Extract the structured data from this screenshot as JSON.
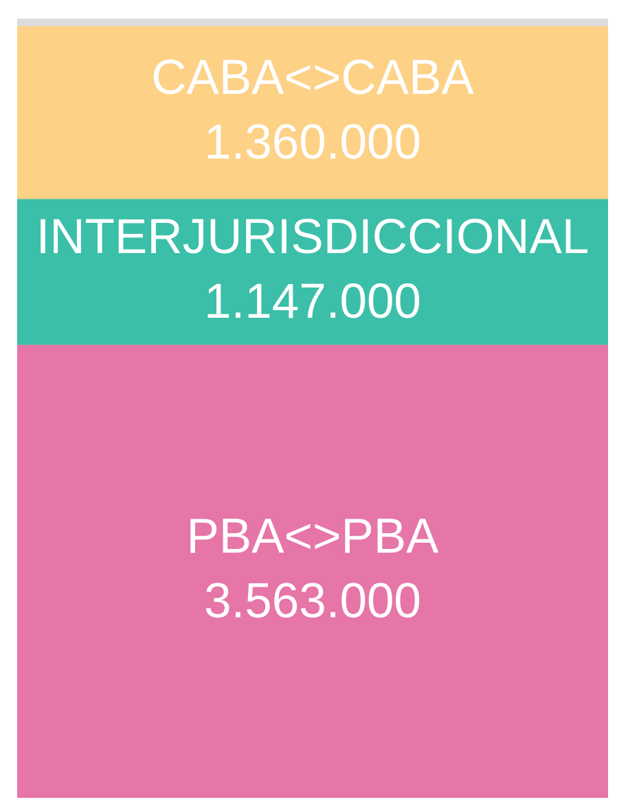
{
  "chart_data": {
    "type": "treemap",
    "categories": [
      "CABA<>CABA",
      "INTERJURISDICCIONAL",
      "PBA<>PBA"
    ],
    "values": [
      1360000,
      1147000,
      3563000
    ],
    "value_labels": [
      "1.360.000",
      "1.147.000",
      "3.563.000"
    ],
    "colors": [
      "#fdd186",
      "#3bbfa8",
      "#e675a8"
    ]
  }
}
